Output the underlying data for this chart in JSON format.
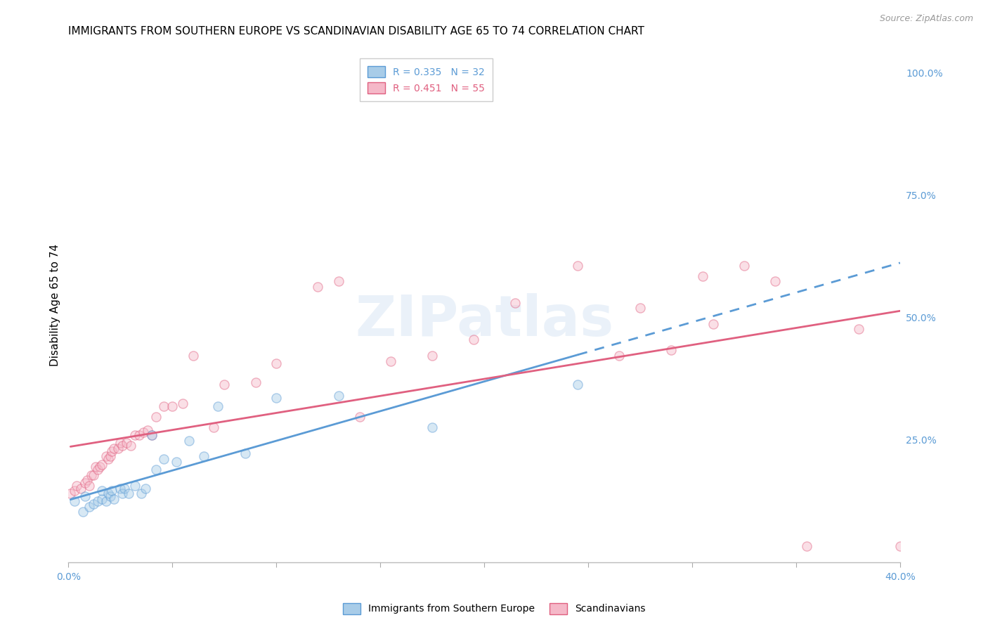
{
  "title": "IMMIGRANTS FROM SOUTHERN EUROPE VS SCANDINAVIAN DISABILITY AGE 65 TO 74 CORRELATION CHART",
  "source": "Source: ZipAtlas.com",
  "ylabel": "Disability Age 65 to 74",
  "right_yticks": [
    0.0,
    0.25,
    0.5,
    0.75,
    1.0
  ],
  "right_yticklabels": [
    "",
    "25.0%",
    "50.0%",
    "75.0%",
    "100.0%"
  ],
  "legend_bottom": [
    "Immigrants from Southern Europe",
    "Scandinavians"
  ],
  "series1_color": "#a8cce8",
  "series2_color": "#f5b8c8",
  "line1_color": "#5b9bd5",
  "line2_color": "#e06080",
  "xlim": [
    0.0,
    0.4
  ],
  "ylim": [
    0.08,
    1.05
  ],
  "background_color": "#ffffff",
  "grid_color": "#d8d8d8",
  "series1_x": [
    0.003,
    0.007,
    0.008,
    0.01,
    0.012,
    0.014,
    0.016,
    0.016,
    0.018,
    0.019,
    0.02,
    0.021,
    0.022,
    0.025,
    0.026,
    0.027,
    0.029,
    0.032,
    0.035,
    0.037,
    0.04,
    0.042,
    0.046,
    0.052,
    0.058,
    0.065,
    0.072,
    0.085,
    0.1,
    0.13,
    0.175,
    0.245
  ],
  "series1_y": [
    0.195,
    0.175,
    0.205,
    0.185,
    0.19,
    0.195,
    0.2,
    0.215,
    0.195,
    0.21,
    0.205,
    0.215,
    0.2,
    0.22,
    0.21,
    0.22,
    0.21,
    0.225,
    0.21,
    0.22,
    0.32,
    0.255,
    0.275,
    0.27,
    0.31,
    0.28,
    0.375,
    0.285,
    0.39,
    0.395,
    0.335,
    0.415
  ],
  "series2_x": [
    0.001,
    0.003,
    0.004,
    0.006,
    0.008,
    0.009,
    0.01,
    0.011,
    0.012,
    0.013,
    0.014,
    0.015,
    0.016,
    0.018,
    0.019,
    0.02,
    0.021,
    0.022,
    0.024,
    0.025,
    0.026,
    0.028,
    0.03,
    0.032,
    0.034,
    0.036,
    0.038,
    0.04,
    0.042,
    0.046,
    0.05,
    0.055,
    0.06,
    0.07,
    0.075,
    0.09,
    0.1,
    0.12,
    0.13,
    0.14,
    0.155,
    0.175,
    0.195,
    0.215,
    0.245,
    0.265,
    0.275,
    0.29,
    0.305,
    0.31,
    0.325,
    0.34,
    0.355,
    0.38,
    0.4
  ],
  "series2_y": [
    0.21,
    0.215,
    0.225,
    0.22,
    0.23,
    0.235,
    0.225,
    0.245,
    0.245,
    0.26,
    0.255,
    0.26,
    0.265,
    0.28,
    0.275,
    0.28,
    0.29,
    0.295,
    0.295,
    0.305,
    0.3,
    0.305,
    0.3,
    0.32,
    0.32,
    0.325,
    0.33,
    0.32,
    0.355,
    0.375,
    0.375,
    0.38,
    0.47,
    0.335,
    0.415,
    0.42,
    0.455,
    0.6,
    0.61,
    0.355,
    0.46,
    0.47,
    0.5,
    0.57,
    0.64,
    0.47,
    0.56,
    0.48,
    0.62,
    0.53,
    0.64,
    0.61,
    0.11,
    0.52,
    0.11
  ],
  "title_fontsize": 11,
  "source_fontsize": 9,
  "axis_label_fontsize": 11,
  "tick_fontsize": 10,
  "legend_fontsize": 10,
  "marker_size": 90,
  "marker_alpha": 0.45,
  "marker_edge_width": 1.0,
  "line1_start_x": 0.001,
  "line1_end_solid_x": 0.245,
  "line1_end_dash_x": 0.4,
  "line2_start_x": 0.001,
  "line2_end_x": 0.4
}
